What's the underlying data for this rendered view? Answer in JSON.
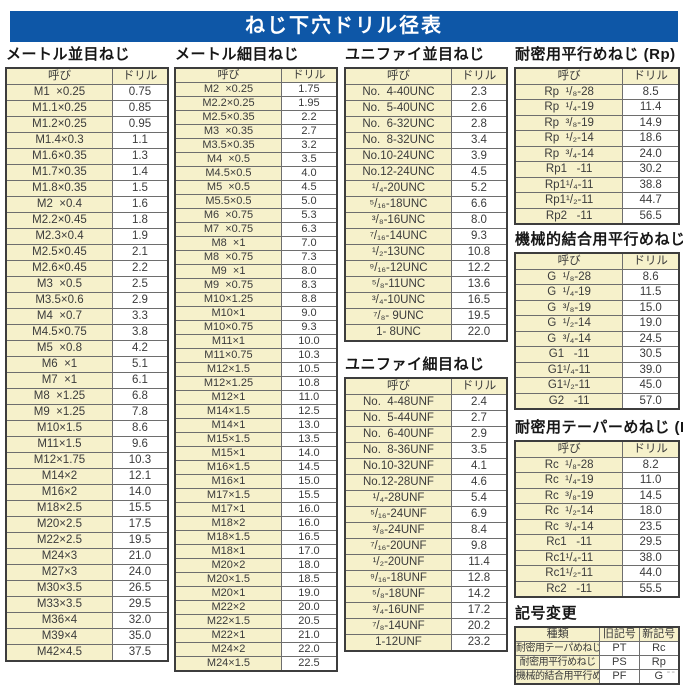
{
  "page_title": "ねじ下穴ドリル径表",
  "corner_mark": "--",
  "colors": {
    "accent_blue": "#0e57a7",
    "cell_yellow": "#f6f1cb",
    "border_dark": "#3d3d3d",
    "border_inner": "#6e6e6e",
    "text": "#3b3b3b"
  },
  "tables": {
    "metric_coarse": {
      "title": "メートル並目ねじ",
      "headers": [
        "呼び",
        "ドリル"
      ],
      "rows": [
        [
          "M1  ×0.25",
          "0.75"
        ],
        [
          "M1.1×0.25",
          "0.85"
        ],
        [
          "M1.2×0.25",
          "0.95"
        ],
        [
          "M1.4×0.3",
          "1.1"
        ],
        [
          "M1.6×0.35",
          "1.3"
        ],
        [
          "M1.7×0.35",
          "1.4"
        ],
        [
          "M1.8×0.35",
          "1.5"
        ],
        [
          "M2  ×0.4",
          "1.6"
        ],
        [
          "M2.2×0.45",
          "1.8"
        ],
        [
          "M2.3×0.4",
          "1.9"
        ],
        [
          "M2.5×0.45",
          "2.1"
        ],
        [
          "M2.6×0.45",
          "2.2"
        ],
        [
          "M3  ×0.5",
          "2.5"
        ],
        [
          "M3.5×0.6",
          "2.9"
        ],
        [
          "M4  ×0.7",
          "3.3"
        ],
        [
          "M4.5×0.75",
          "3.8"
        ],
        [
          "M5  ×0.8",
          "4.2"
        ],
        [
          "M6  ×1",
          "5.1"
        ],
        [
          "M7  ×1",
          "6.1"
        ],
        [
          "M8  ×1.25",
          "6.8"
        ],
        [
          "M9  ×1.25",
          "7.8"
        ],
        [
          "M10×1.5",
          "8.6"
        ],
        [
          "M11×1.5",
          "9.6"
        ],
        [
          "M12×1.75",
          "10.3"
        ],
        [
          "M14×2",
          "12.1"
        ],
        [
          "M16×2",
          "14.0"
        ],
        [
          "M18×2.5",
          "15.5"
        ],
        [
          "M20×2.5",
          "17.5"
        ],
        [
          "M22×2.5",
          "19.5"
        ],
        [
          "M24×3",
          "21.0"
        ],
        [
          "M27×3",
          "24.0"
        ],
        [
          "M30×3.5",
          "26.5"
        ],
        [
          "M33×3.5",
          "29.5"
        ],
        [
          "M36×4",
          "32.0"
        ],
        [
          "M39×4",
          "35.0"
        ],
        [
          "M42×4.5",
          "37.5"
        ]
      ]
    },
    "metric_fine": {
      "title": "メートル細目ねじ",
      "headers": [
        "呼び",
        "ドリル"
      ],
      "rows": [
        [
          "M2  ×0.25",
          "1.75"
        ],
        [
          "M2.2×0.25",
          "1.95"
        ],
        [
          "M2.5×0.35",
          "2.2"
        ],
        [
          "M3  ×0.35",
          "2.7"
        ],
        [
          "M3.5×0.35",
          "3.2"
        ],
        [
          "M4  ×0.5",
          "3.5"
        ],
        [
          "M4.5×0.5",
          "4.0"
        ],
        [
          "M5  ×0.5",
          "4.5"
        ],
        [
          "M5.5×0.5",
          "5.0"
        ],
        [
          "M6  ×0.75",
          "5.3"
        ],
        [
          "M7  ×0.75",
          "6.3"
        ],
        [
          "M8  ×1",
          "7.0"
        ],
        [
          "M8  ×0.75",
          "7.3"
        ],
        [
          "M9  ×1",
          "8.0"
        ],
        [
          "M9  ×0.75",
          "8.3"
        ],
        [
          "M10×1.25",
          "8.8"
        ],
        [
          "M10×1",
          "9.0"
        ],
        [
          "M10×0.75",
          "9.3"
        ],
        [
          "M11×1",
          "10.0"
        ],
        [
          "M11×0.75",
          "10.3"
        ],
        [
          "M12×1.5",
          "10.5"
        ],
        [
          "M12×1.25",
          "10.8"
        ],
        [
          "M12×1",
          "11.0"
        ],
        [
          "M14×1.5",
          "12.5"
        ],
        [
          "M14×1",
          "13.0"
        ],
        [
          "M15×1.5",
          "13.5"
        ],
        [
          "M15×1",
          "14.0"
        ],
        [
          "M16×1.5",
          "14.5"
        ],
        [
          "M16×1",
          "15.0"
        ],
        [
          "M17×1.5",
          "15.5"
        ],
        [
          "M17×1",
          "16.0"
        ],
        [
          "M18×2",
          "16.0"
        ],
        [
          "M18×1.5",
          "16.5"
        ],
        [
          "M18×1",
          "17.0"
        ],
        [
          "M20×2",
          "18.0"
        ],
        [
          "M20×1.5",
          "18.5"
        ],
        [
          "M20×1",
          "19.0"
        ],
        [
          "M22×2",
          "20.0"
        ],
        [
          "M22×1.5",
          "20.5"
        ],
        [
          "M22×1",
          "21.0"
        ],
        [
          "M24×2",
          "22.0"
        ],
        [
          "M24×1.5",
          "22.5"
        ]
      ]
    },
    "unified_coarse": {
      "title": "ユニファイ並目ねじ",
      "headers": [
        "呼び",
        "ドリル"
      ],
      "rows": [
        [
          "No.  4-40UNC",
          "2.3"
        ],
        [
          "No.  5-40UNC",
          "2.6"
        ],
        [
          "No.  6-32UNC",
          "2.8"
        ],
        [
          "No.  8-32UNC",
          "3.4"
        ],
        [
          "No.10-24UNC",
          "3.9"
        ],
        [
          "No.12-24UNC",
          "4.5"
        ],
        [
          "¹/₄-20UNC",
          "5.2"
        ],
        [
          "⁵/₁₆-18UNC",
          "6.6"
        ],
        [
          "³/₈-16UNC",
          "8.0"
        ],
        [
          "⁷/₁₆-14UNC",
          "9.3"
        ],
        [
          "¹/₂-13UNC",
          "10.8"
        ],
        [
          "⁹/₁₆-12UNC",
          "12.2"
        ],
        [
          "⁵/₈-11UNC",
          "13.6"
        ],
        [
          "³/₄-10UNC",
          "16.5"
        ],
        [
          "⁷/₈- 9UNC",
          "19.5"
        ],
        [
          "1- 8UNC",
          "22.0"
        ]
      ]
    },
    "unified_fine": {
      "title": "ユニファイ細目ねじ",
      "headers": [
        "呼び",
        "ドリル"
      ],
      "rows": [
        [
          "No.  4-48UNF",
          "2.4"
        ],
        [
          "No.  5-44UNF",
          "2.7"
        ],
        [
          "No.  6-40UNF",
          "2.9"
        ],
        [
          "No.  8-36UNF",
          "3.5"
        ],
        [
          "No.10-32UNF",
          "4.1"
        ],
        [
          "No.12-28UNF",
          "4.6"
        ],
        [
          "¹/₄-28UNF",
          "5.4"
        ],
        [
          "⁵/₁₆-24UNF",
          "6.9"
        ],
        [
          "³/₈-24UNF",
          "8.4"
        ],
        [
          "⁷/₁₆-20UNF",
          "9.8"
        ],
        [
          "¹/₂-20UNF",
          "11.4"
        ],
        [
          "⁹/₁₆-18UNF",
          "12.8"
        ],
        [
          "⁵/₈-18UNF",
          "14.2"
        ],
        [
          "³/₄-16UNF",
          "17.2"
        ],
        [
          "⁷/₈-14UNF",
          "20.2"
        ],
        [
          "1-12UNF",
          "23.2"
        ]
      ]
    },
    "rp": {
      "title": "耐密用平行めねじ (Rp)",
      "headers": [
        "呼び",
        "ドリル"
      ],
      "rows": [
        [
          "Rp  ¹/₈-28",
          "8.5"
        ],
        [
          "Rp  ¹/₄-19",
          "11.4"
        ],
        [
          "Rp  ³/₈-19",
          "14.9"
        ],
        [
          "Rp  ¹/₂-14",
          "18.6"
        ],
        [
          "Rp  ³/₄-14",
          "24.0"
        ],
        [
          "Rp1   -11",
          "30.2"
        ],
        [
          "Rp1¹/₄-11",
          "38.8"
        ],
        [
          "Rp1¹/₂-11",
          "44.7"
        ],
        [
          "Rp2   -11",
          "56.5"
        ]
      ]
    },
    "g": {
      "title": "機械的結合用平行めねじ (G)",
      "headers": [
        "呼び",
        "ドリル"
      ],
      "rows": [
        [
          "G  ¹/₈-28",
          "8.6"
        ],
        [
          "G  ¹/₄-19",
          "11.5"
        ],
        [
          "G  ³/₈-19",
          "15.0"
        ],
        [
          "G  ¹/₂-14",
          "19.0"
        ],
        [
          "G  ³/₄-14",
          "24.5"
        ],
        [
          "G1   -11",
          "30.5"
        ],
        [
          "G1¹/₄-11",
          "39.0"
        ],
        [
          "G1¹/₂-11",
          "45.0"
        ],
        [
          "G2   -11",
          "57.0"
        ]
      ]
    },
    "rc": {
      "title": "耐密用テーパーめねじ (Rc)",
      "headers": [
        "呼び",
        "ドリル"
      ],
      "rows": [
        [
          "Rc  ¹/₈-28",
          "8.2"
        ],
        [
          "Rc  ¹/₄-19",
          "11.0"
        ],
        [
          "Rc  ³/₈-19",
          "14.5"
        ],
        [
          "Rc  ¹/₂-14",
          "18.0"
        ],
        [
          "Rc  ³/₄-14",
          "23.5"
        ],
        [
          "Rc1   -11",
          "29.5"
        ],
        [
          "Rc1¹/₄-11",
          "38.0"
        ],
        [
          "Rc1¹/₂-11",
          "44.0"
        ],
        [
          "Rc2   -11",
          "55.5"
        ]
      ]
    },
    "symbol_change": {
      "title": "記号変更",
      "headers": [
        "種類",
        "旧記号",
        "新記号"
      ],
      "rows": [
        [
          "耐密用テーパめねじ",
          "PT",
          "Rc"
        ],
        [
          "耐密用平行めねじ",
          "PS",
          "Rp"
        ],
        [
          "機械的結合用平行めねじ",
          "PF",
          "G"
        ]
      ]
    }
  }
}
